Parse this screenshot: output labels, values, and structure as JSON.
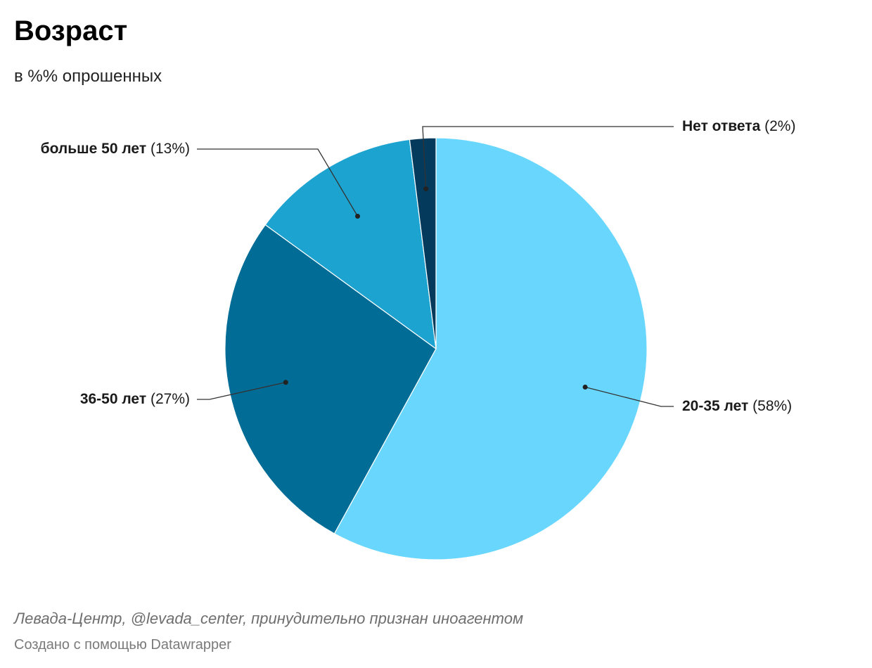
{
  "header": {
    "title": "Возраст",
    "subtitle": "в %% опрошенных"
  },
  "chart_data": {
    "type": "pie",
    "title": "Возраст",
    "subtitle": "в %% опрошенных",
    "unit": "%",
    "slices": [
      {
        "label": "20-35 лет",
        "value": 58,
        "value_text": "(58%)",
        "color": "#69d7fd"
      },
      {
        "label": "36-50 лет",
        "value": 27,
        "value_text": "(27%)",
        "color": "#016c95"
      },
      {
        "label": "больше 50 лет",
        "value": 13,
        "value_text": "(13%)",
        "color": "#1ca3cf"
      },
      {
        "label": "Нет ответа",
        "value": 2,
        "value_text": "(2%)",
        "color": "#043a5c"
      }
    ],
    "label_style": "leader-lines"
  },
  "footer": {
    "source": "Левада-Центр, @levada_center, принудительно признан иноагентом",
    "credit": "Создано с помощью Datawrapper"
  }
}
